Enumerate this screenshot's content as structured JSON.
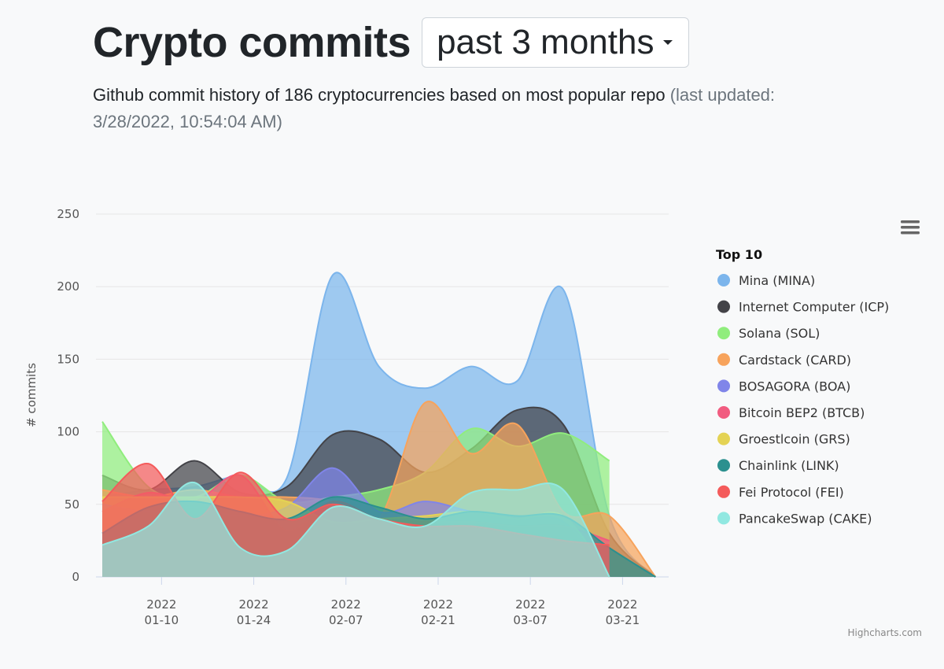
{
  "header": {
    "title": "Crypto commits",
    "range_selected": "past 3 months"
  },
  "subtitle": {
    "main": "Github commit history of 186 cryptocurrencies based on most popular repo",
    "updated": "(last updated: 3/28/2022, 10:54:04 AM)"
  },
  "chart_data": {
    "type": "area",
    "ylabel": "# commits",
    "xlabel": "",
    "ylim": [
      0,
      250
    ],
    "yticks": [
      0,
      50,
      100,
      150,
      200,
      250
    ],
    "xlim": [
      "2022-01-01",
      "2022-03-28"
    ],
    "xticks": [
      {
        "date": "2022-01-10",
        "year": "2022",
        "md": "01-10"
      },
      {
        "date": "2022-01-24",
        "year": "2022",
        "md": "01-24"
      },
      {
        "date": "2022-02-07",
        "year": "2022",
        "md": "02-07"
      },
      {
        "date": "2022-02-21",
        "year": "2022",
        "md": "02-21"
      },
      {
        "date": "2022-03-07",
        "year": "2022",
        "md": "03-07"
      },
      {
        "date": "2022-03-21",
        "year": "2022",
        "md": "03-21"
      }
    ],
    "grid": true,
    "legend_title": "Top 10",
    "legend_position": "right",
    "series": [
      {
        "name": "Mina (MINA)",
        "color": "#7cb5ec",
        "x": [
          "2022-01-01",
          "2022-01-08",
          "2022-01-15",
          "2022-01-22",
          "2022-01-29",
          "2022-02-05",
          "2022-02-12",
          "2022-02-19",
          "2022-02-26",
          "2022-03-05",
          "2022-03-12",
          "2022-03-19",
          "2022-03-26"
        ],
        "y": [
          55,
          60,
          62,
          70,
          68,
          208,
          145,
          130,
          145,
          135,
          198,
          42,
          0
        ]
      },
      {
        "name": "Internet Computer (ICP)",
        "color": "#434348",
        "x": [
          "2022-01-01",
          "2022-01-08",
          "2022-01-15",
          "2022-01-22",
          "2022-01-29",
          "2022-02-05",
          "2022-02-12",
          "2022-02-19",
          "2022-02-26",
          "2022-03-05",
          "2022-03-12",
          "2022-03-19",
          "2022-03-26"
        ],
        "y": [
          70,
          60,
          80,
          58,
          62,
          98,
          95,
          72,
          88,
          115,
          105,
          30,
          0
        ]
      },
      {
        "name": "Solana (SOL)",
        "color": "#90ed7d",
        "x": [
          "2022-01-01",
          "2022-01-08",
          "2022-01-15",
          "2022-01-22",
          "2022-01-29",
          "2022-02-05",
          "2022-02-12",
          "2022-02-19",
          "2022-02-26",
          "2022-03-05",
          "2022-03-12",
          "2022-03-19"
        ],
        "y": [
          107,
          62,
          55,
          70,
          52,
          55,
          60,
          72,
          102,
          90,
          99,
          80
        ]
      },
      {
        "name": "Cardstack (CARD)",
        "color": "#f7a35c",
        "x": [
          "2022-01-01",
          "2022-01-08",
          "2022-01-15",
          "2022-01-22",
          "2022-01-29",
          "2022-02-05",
          "2022-02-12",
          "2022-02-19",
          "2022-02-26",
          "2022-03-05",
          "2022-03-12",
          "2022-03-19",
          "2022-03-26"
        ],
        "y": [
          60,
          55,
          60,
          55,
          55,
          52,
          40,
          120,
          85,
          105,
          45,
          42,
          0
        ]
      },
      {
        "name": "BOSAGORA (BOA)",
        "color": "#8085e9",
        "x": [
          "2022-01-01",
          "2022-01-08",
          "2022-01-15",
          "2022-01-22",
          "2022-01-29",
          "2022-02-05",
          "2022-02-12",
          "2022-02-19",
          "2022-02-26",
          "2022-03-05",
          "2022-03-12",
          "2022-03-19"
        ],
        "y": [
          50,
          45,
          48,
          42,
          48,
          75,
          45,
          52,
          45,
          40,
          38,
          0
        ]
      },
      {
        "name": "Bitcoin BEP2 (BTCB)",
        "color": "#f15c80",
        "x": [
          "2022-01-01",
          "2022-01-08",
          "2022-01-15",
          "2022-01-22",
          "2022-01-29",
          "2022-02-05",
          "2022-02-12",
          "2022-02-19",
          "2022-02-26",
          "2022-03-05",
          "2022-03-12",
          "2022-03-19"
        ],
        "y": [
          45,
          58,
          52,
          70,
          32,
          52,
          40,
          38,
          38,
          35,
          35,
          25
        ]
      },
      {
        "name": "Groestlcoin (GRS)",
        "color": "#e4d354",
        "x": [
          "2022-01-01",
          "2022-01-08",
          "2022-01-15",
          "2022-01-22",
          "2022-01-29",
          "2022-02-05",
          "2022-02-12",
          "2022-02-19",
          "2022-02-26",
          "2022-03-05",
          "2022-03-12",
          "2022-03-19"
        ],
        "y": [
          55,
          55,
          55,
          55,
          52,
          38,
          40,
          42,
          45,
          40,
          42,
          0
        ]
      },
      {
        "name": "Chainlink (LINK)",
        "color": "#2b908f",
        "x": [
          "2022-01-01",
          "2022-01-08",
          "2022-01-15",
          "2022-01-22",
          "2022-01-29",
          "2022-02-05",
          "2022-02-12",
          "2022-02-19",
          "2022-02-26",
          "2022-03-05",
          "2022-03-12",
          "2022-03-19",
          "2022-03-26"
        ],
        "y": [
          30,
          48,
          52,
          45,
          40,
          55,
          48,
          40,
          45,
          42,
          42,
          20,
          0
        ]
      },
      {
        "name": "Fei Protocol (FEI)",
        "color": "#f45b5b",
        "x": [
          "2022-01-01",
          "2022-01-08",
          "2022-01-15",
          "2022-01-22",
          "2022-01-29",
          "2022-02-05",
          "2022-02-12",
          "2022-02-19",
          "2022-02-26",
          "2022-03-05",
          "2022-03-12",
          "2022-03-19"
        ],
        "y": [
          52,
          78,
          40,
          72,
          40,
          50,
          40,
          35,
          35,
          30,
          25,
          22
        ]
      },
      {
        "name": "PancakeSwap (CAKE)",
        "color": "#91e8e1",
        "x": [
          "2022-01-01",
          "2022-01-08",
          "2022-01-15",
          "2022-01-22",
          "2022-01-29",
          "2022-02-05",
          "2022-02-12",
          "2022-02-19",
          "2022-02-26",
          "2022-03-05",
          "2022-03-12",
          "2022-03-19"
        ],
        "y": [
          22,
          35,
          65,
          20,
          18,
          48,
          40,
          35,
          58,
          60,
          60,
          0
        ]
      }
    ]
  },
  "credits": "Highcharts.com"
}
